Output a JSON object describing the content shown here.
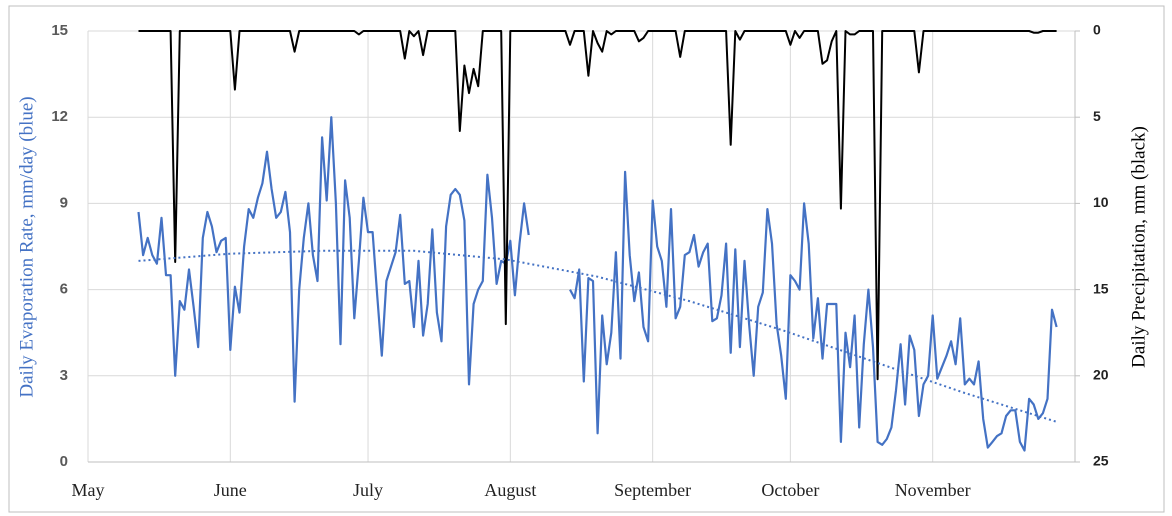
{
  "chart_data": {
    "type": "line",
    "y_title": "Daily Evaporation Rate, mm/day (blue)",
    "y2_title": "Daily Precipitation,  mm (black)",
    "x": [
      11,
      12,
      13,
      14,
      15,
      16,
      17,
      18,
      19,
      20,
      21,
      22,
      23,
      24,
      25,
      26,
      27,
      28,
      29,
      30,
      31,
      32,
      33,
      34,
      35,
      36,
      37,
      38,
      39,
      40,
      41,
      42,
      43,
      44,
      45,
      46,
      47,
      48,
      49,
      50,
      51,
      52,
      53,
      54,
      55,
      56,
      57,
      58,
      59,
      60,
      61,
      62,
      63,
      64,
      65,
      66,
      67,
      68,
      69,
      70,
      71,
      72,
      73,
      74,
      75,
      76,
      77,
      78,
      79,
      80,
      81,
      82,
      83,
      84,
      85,
      86,
      87,
      88,
      89,
      90,
      91,
      92,
      93,
      94,
      95,
      96,
      97,
      98,
      99,
      100,
      101,
      102,
      103,
      104,
      105,
      106,
      107,
      108,
      109,
      110,
      111,
      112,
      113,
      114,
      115,
      116,
      117,
      118,
      119,
      120,
      121,
      122,
      123,
      124,
      125,
      126,
      127,
      128,
      129,
      130,
      131,
      132,
      133,
      134,
      135,
      136,
      137,
      138,
      139,
      140,
      141,
      142,
      143,
      144,
      145,
      146,
      147,
      148,
      149,
      150,
      151,
      152,
      153,
      154,
      155,
      156,
      157,
      158,
      159,
      160,
      161,
      162,
      163,
      164,
      165,
      166,
      167,
      168,
      169,
      170,
      171,
      172,
      173,
      174,
      175,
      176,
      177,
      178,
      179,
      180,
      181,
      182,
      183,
      184,
      185,
      186,
      187,
      188,
      189,
      190,
      191,
      192,
      193,
      194,
      195,
      196,
      197,
      198,
      199,
      200,
      201,
      202,
      203,
      204,
      205,
      206,
      207,
      208,
      209,
      210,
      211
    ],
    "xlim": [
      0,
      215
    ],
    "xticks": [
      {
        "value": 0,
        "label": "May"
      },
      {
        "value": 31,
        "label": "June"
      },
      {
        "value": 61,
        "label": "July"
      },
      {
        "value": 92,
        "label": "August"
      },
      {
        "value": 123,
        "label": "September"
      },
      {
        "value": 153,
        "label": "October"
      },
      {
        "value": 184,
        "label": "November"
      }
    ],
    "ylim": [
      0,
      15
    ],
    "yticks": [
      0,
      3,
      6,
      9,
      12,
      15
    ],
    "y2lim": [
      0,
      25
    ],
    "y2ticks": [
      0,
      5,
      10,
      15,
      20,
      25
    ],
    "y2reverse": true,
    "grid": true,
    "series": [
      {
        "color": "#4472c4",
        "axis": "y",
        "values": [
          8.7,
          7.2,
          7.8,
          7.2,
          6.9,
          8.5,
          6.5,
          6.5,
          3.0,
          5.6,
          5.3,
          6.7,
          5.4,
          4.0,
          7.8,
          8.7,
          8.2,
          7.3,
          7.7,
          7.8,
          3.9,
          6.1,
          5.2,
          7.5,
          8.8,
          8.5,
          9.2,
          9.7,
          10.8,
          9.5,
          8.5,
          8.7,
          9.4,
          8.0,
          2.1,
          6.0,
          7.8,
          9.0,
          7.2,
          6.3,
          11.3,
          9.1,
          12.0,
          9.0,
          4.1,
          9.8,
          8.5,
          5.0,
          7.0,
          9.2,
          8.0,
          8.0,
          5.8,
          3.7,
          6.3,
          6.8,
          7.3,
          8.6,
          6.2,
          6.3,
          4.7,
          7.0,
          4.4,
          5.5,
          8.1,
          5.2,
          4.2,
          8.2,
          9.3,
          9.5,
          9.3,
          8.4,
          2.7,
          5.5,
          6.0,
          6.3,
          10.0,
          8.5,
          6.2,
          7.0,
          6.9,
          7.7,
          5.8,
          7.6,
          9.0,
          7.9,
          null,
          null,
          null,
          null,
          null,
          null,
          null,
          null,
          6.0,
          5.7,
          6.7,
          2.8,
          6.4,
          6.3,
          1.0,
          5.1,
          3.4,
          4.5,
          7.3,
          3.6,
          10.1,
          7.2,
          5.6,
          6.6,
          4.7,
          4.2,
          9.1,
          7.5,
          7.0,
          5.4,
          8.8,
          5.0,
          5.4,
          7.2,
          7.3,
          7.9,
          6.8,
          7.3,
          7.6,
          4.9,
          5.0,
          5.8,
          7.6,
          3.8,
          7.4,
          4.0,
          7.0,
          4.8,
          3.0,
          5.4,
          5.9,
          8.8,
          7.6,
          4.8,
          3.7,
          2.2,
          6.5,
          6.3,
          6.0,
          9.0,
          7.6,
          4.3,
          5.7,
          3.6,
          5.5,
          5.5,
          5.5,
          0.7,
          4.5,
          3.3,
          5.1,
          1.2,
          4.1,
          6.0,
          4.0,
          0.7,
          0.6,
          0.8,
          1.2,
          2.5,
          4.1,
          2.0,
          4.4,
          3.9,
          1.6,
          2.7,
          3.0,
          5.1,
          2.9,
          3.3,
          3.7,
          4.2,
          3.4,
          5.0,
          2.7,
          2.9,
          2.7,
          3.5,
          1.5,
          0.5,
          0.7,
          0.9,
          1.0,
          1.6,
          1.8,
          1.8,
          0.7,
          0.4,
          2.2,
          2.0,
          1.5,
          1.7,
          2.2,
          5.3,
          4.7
        ]
      },
      {
        "color": "#000000",
        "axis": "y2",
        "values": [
          0,
          0,
          0,
          0,
          0,
          0,
          0,
          0,
          13.4,
          0,
          0,
          0,
          0,
          0,
          0,
          0,
          0,
          0,
          0,
          0,
          0,
          3.4,
          0,
          0,
          0,
          0,
          0,
          0,
          0,
          0,
          0,
          0,
          0,
          0,
          1.2,
          0,
          0,
          0,
          0,
          0,
          0,
          0,
          0,
          0,
          0,
          0,
          0,
          0,
          0.2,
          0,
          0,
          0,
          0,
          0,
          0,
          0,
          0,
          0,
          1.6,
          0,
          0.3,
          0,
          1.4,
          0,
          0,
          0,
          0,
          0,
          0,
          0,
          5.8,
          2.0,
          3.6,
          2.2,
          3.2,
          0,
          0,
          0,
          0,
          0,
          17.0,
          0,
          0,
          0,
          0,
          0,
          0,
          0,
          0,
          0,
          0,
          0,
          0,
          0,
          0.8,
          0,
          0,
          0,
          2.6,
          0,
          0.7,
          1.2,
          0,
          0.2,
          0,
          0,
          0,
          0,
          0,
          0.6,
          0.4,
          0,
          0,
          0,
          0,
          0,
          0,
          0,
          1.5,
          0,
          0,
          0,
          0,
          0,
          0,
          0,
          0,
          0,
          0,
          6.6,
          0,
          0.5,
          0,
          0,
          0,
          0,
          0,
          0,
          0,
          0,
          0,
          0,
          0.8,
          0,
          0.4,
          0,
          0,
          0,
          0,
          1.9,
          1.7,
          0.6,
          0,
          10.3,
          0,
          0.2,
          0.2,
          0,
          0,
          0,
          0,
          20.2,
          0,
          0,
          0,
          0,
          0,
          0,
          0,
          0,
          2.4,
          0,
          0,
          0,
          0,
          0,
          0,
          0,
          0,
          0,
          0,
          0,
          0,
          0,
          0,
          0,
          0,
          0,
          0,
          0,
          0,
          0,
          0,
          0,
          0,
          0.1,
          0.1,
          0,
          0,
          0,
          0
        ]
      },
      {
        "color": "#4472c4",
        "axis": "y",
        "style": "dotted",
        "x": [
          11,
          31,
          51,
          71,
          91,
          111,
          131,
          151,
          171,
          191,
          211
        ],
        "values": [
          7.0,
          7.25,
          7.35,
          7.35,
          7.05,
          6.45,
          5.6,
          4.6,
          3.5,
          2.4,
          1.4
        ]
      }
    ]
  }
}
